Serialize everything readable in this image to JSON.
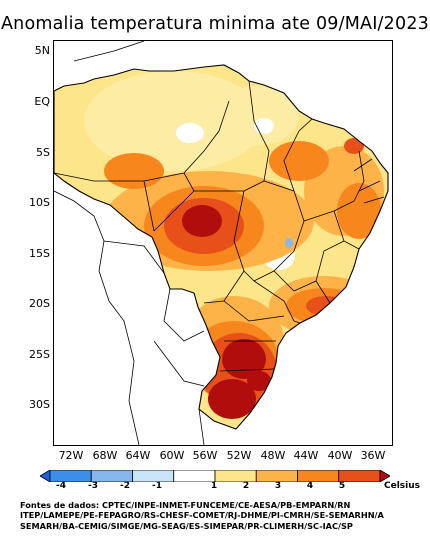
{
  "title": "Anomalia temperatura minima ate 09/MAI/2023",
  "lat_labels": [
    "5N",
    "EQ",
    "5S",
    "10S",
    "15S",
    "20S",
    "25S",
    "30S"
  ],
  "lon_labels": [
    "72W",
    "68W",
    "64W",
    "60W",
    "56W",
    "52W",
    "48W",
    "44W",
    "40W",
    "36W"
  ],
  "legend": {
    "unit": "Celsius",
    "ticks": [
      "-4",
      "-3",
      "-2",
      "-1",
      "1",
      "2",
      "3",
      "4",
      "5"
    ],
    "colors": [
      "#1f5fe0",
      "#3a8fe8",
      "#86b8ee",
      "#c9e4f6",
      "#ffffff",
      "#fde58a",
      "#fdb347",
      "#f7861d",
      "#e8501a",
      "#b10d0d"
    ]
  },
  "sources": [
    "Fontes de dados: CPTEC/INPE-INMET-FUNCEME/CE-AESA/PB-EMPARN/RN",
    "ITEP/LAMEPE/PE-FEPAGRO/RS-CHESF-COMET/RJ-DHME/PI-CMRH/SE-SEMARHN/A",
    "SEMARH/BA-CEMIG/SIMGE/MG-SEAG/ES-SIMEPAR/PR-CLIMERH/SC-IAC/SP"
  ]
}
